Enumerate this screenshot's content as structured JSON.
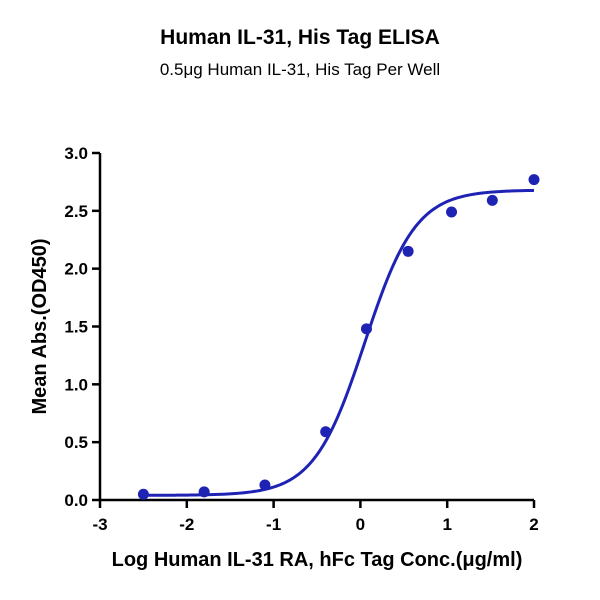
{
  "chart_data": {
    "type": "scatter",
    "title": "Human IL-31, His Tag ELISA",
    "subtitle": "0.5μg Human IL-31, His Tag Per Well",
    "xlabel": "Log Human IL-31 RA, hFc Tag Conc.(μg/ml)",
    "ylabel": "Mean Abs.(OD450)",
    "xlim": [
      -3,
      2
    ],
    "ylim": [
      0,
      3.0
    ],
    "x_ticks": [
      -3,
      -2,
      -1,
      0,
      1,
      2
    ],
    "x_tick_labels": [
      "-3",
      "-2",
      "-1",
      "0",
      "1",
      "2"
    ],
    "y_ticks": [
      0,
      0.5,
      1.0,
      1.5,
      2.0,
      2.5,
      3.0
    ],
    "y_tick_labels": [
      "0.0",
      "0.5",
      "1.0",
      "1.5",
      "2.0",
      "2.5",
      "3.0"
    ],
    "grid": false,
    "legend": "none",
    "series": [
      {
        "x": [
          -2.5,
          -1.8,
          -1.1,
          -0.4,
          0.07,
          0.55,
          1.05,
          1.52,
          2.0
        ],
        "y": [
          0.05,
          0.07,
          0.13,
          0.59,
          1.48,
          2.15,
          2.49,
          2.59,
          2.77
        ],
        "color": "#1f23b4"
      }
    ],
    "fit_curve": {
      "model": "4PL",
      "bottom": 0.04,
      "top": 2.68,
      "log_ec50": 0.05,
      "hill_slope": 1.48,
      "color": "#1f23b4"
    }
  }
}
